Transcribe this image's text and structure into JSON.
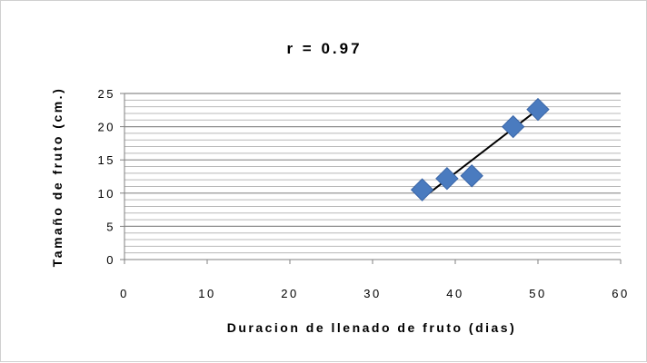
{
  "chart_data": {
    "type": "scatter",
    "title": "r = 0.97",
    "xlabel": "Duracion de llenado de fruto (dias)",
    "ylabel": "Tamaño de fruto (cm.)",
    "xlim": [
      0,
      60
    ],
    "ylim": [
      0,
      25
    ],
    "x_ticks": [
      "0",
      "10",
      "20",
      "30",
      "40",
      "50",
      "60"
    ],
    "y_ticks": [
      "0",
      "5",
      "10",
      "15",
      "20",
      "25"
    ],
    "grid": true,
    "series": [
      {
        "x": [
          36,
          39,
          42,
          47,
          50
        ],
        "y": [
          10.5,
          12.2,
          12.6,
          20.0,
          22.6
        ],
        "marker": "diamond",
        "color": "#4a7bbf"
      }
    ],
    "trendline": {
      "x": [
        36,
        50
      ],
      "y": [
        9.2,
        22.6
      ],
      "color": "#000000"
    }
  }
}
